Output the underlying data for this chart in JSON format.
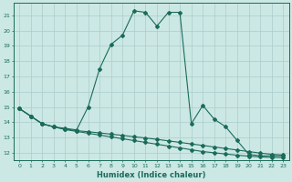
{
  "xlabel": "Humidex (Indice chaleur)",
  "xlim": [
    -0.5,
    23.5
  ],
  "ylim": [
    11.5,
    21.8
  ],
  "yticks": [
    12,
    13,
    14,
    15,
    16,
    17,
    18,
    19,
    20,
    21
  ],
  "xticks": [
    0,
    1,
    2,
    3,
    4,
    5,
    6,
    7,
    8,
    9,
    10,
    11,
    12,
    13,
    14,
    15,
    16,
    17,
    18,
    19,
    20,
    21,
    22,
    23
  ],
  "bg_color": "#cce8e4",
  "line_color": "#1a6b5a",
  "grid_color": "#aacccc",
  "series1_x": [
    0,
    1,
    2,
    3,
    4,
    5,
    6,
    7,
    8,
    9,
    10,
    11,
    12,
    13,
    14,
    15,
    16,
    17,
    18,
    19,
    20,
    21,
    22,
    23
  ],
  "series1_y": [
    14.9,
    14.4,
    13.9,
    13.7,
    13.6,
    13.5,
    15.0,
    17.5,
    19.1,
    19.7,
    21.3,
    21.2,
    20.3,
    21.2,
    21.2,
    13.9,
    15.1,
    14.2,
    13.7,
    12.8,
    11.9,
    11.8,
    11.8,
    11.8
  ],
  "series2_x": [
    0,
    1,
    2,
    3,
    4,
    5,
    6,
    7,
    8,
    9,
    10,
    11,
    12,
    13,
    14,
    15,
    16,
    17,
    18,
    19,
    20,
    21,
    22,
    23
  ],
  "series2_y": [
    14.9,
    14.4,
    13.9,
    13.7,
    13.55,
    13.45,
    13.38,
    13.3,
    13.22,
    13.14,
    13.05,
    12.97,
    12.88,
    12.78,
    12.68,
    12.58,
    12.48,
    12.38,
    12.28,
    12.18,
    12.08,
    11.98,
    11.9,
    11.85
  ],
  "series3_x": [
    0,
    1,
    2,
    3,
    4,
    5,
    6,
    7,
    8,
    9,
    10,
    11,
    12,
    13,
    14,
    15,
    16,
    17,
    18,
    19,
    20,
    21,
    22,
    23
  ],
  "series3_y": [
    14.9,
    14.4,
    13.9,
    13.7,
    13.52,
    13.4,
    13.28,
    13.16,
    13.04,
    12.92,
    12.8,
    12.68,
    12.56,
    12.44,
    12.32,
    12.2,
    12.08,
    12.0,
    11.92,
    11.84,
    11.78,
    11.73,
    11.7,
    11.68
  ]
}
